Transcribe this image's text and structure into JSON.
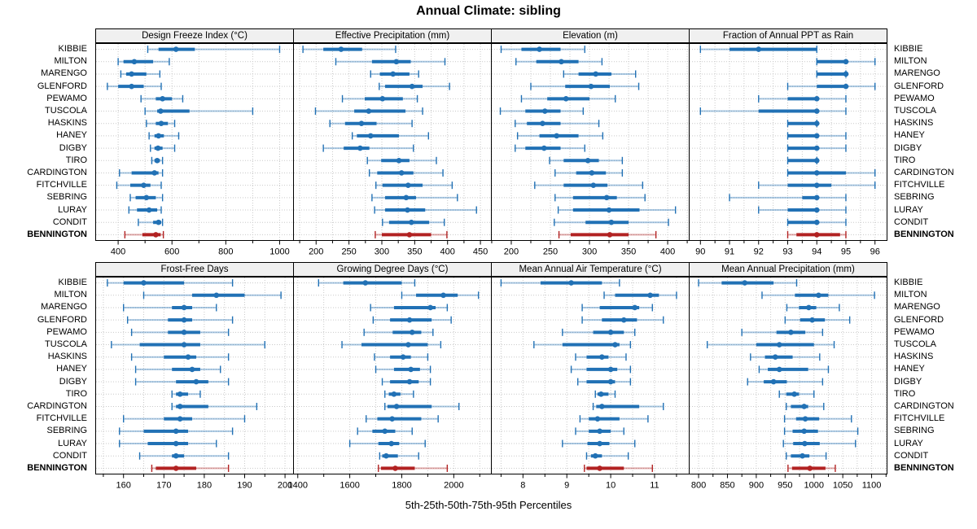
{
  "title": "Annual Climate: sibling",
  "caption": "5th-25th-50th-75th-95th Percentiles",
  "colors": {
    "series": "#2171b5",
    "highlight": "#b22222",
    "strip_bg": "#f0f0f0",
    "grid": "#c9c9c9",
    "border": "#000000"
  },
  "chart_data": {
    "type": "scatter",
    "subtype": "percentile-interval-dotplot",
    "percentiles": [
      5,
      25,
      50,
      75,
      95
    ],
    "grid": true,
    "legend_position": "none",
    "highlight_category": "BENNINGTON",
    "categories": [
      "KIBBIE",
      "MILTON",
      "MARENGO",
      "GLENFORD",
      "PEWAMO",
      "TUSCOLA",
      "HASKINS",
      "HANEY",
      "DIGBY",
      "TIRO",
      "CARDINGTON",
      "FITCHVILLE",
      "SEBRING",
      "LURAY",
      "CONDIT",
      "BENNINGTON"
    ],
    "panels": [
      {
        "title": "Design Freeze Index (°C)",
        "xlim": [
          315,
          1050
        ],
        "ticks": [
          400,
          600,
          800,
          1000
        ],
        "grid_step": 100,
        "values": [
          [
            510,
            550,
            615,
            685,
            1000
          ],
          [
            400,
            420,
            460,
            530,
            590
          ],
          [
            410,
            430,
            450,
            505,
            555
          ],
          [
            360,
            400,
            450,
            495,
            560
          ],
          [
            485,
            540,
            565,
            600,
            640
          ],
          [
            500,
            545,
            558,
            665,
            900
          ],
          [
            505,
            540,
            560,
            585,
            610
          ],
          [
            515,
            535,
            550,
            570,
            625
          ],
          [
            520,
            535,
            548,
            565,
            610
          ],
          [
            525,
            535,
            545,
            555,
            565
          ],
          [
            405,
            450,
            535,
            550,
            565
          ],
          [
            395,
            445,
            495,
            520,
            560
          ],
          [
            445,
            465,
            505,
            540,
            565
          ],
          [
            440,
            470,
            515,
            545,
            560
          ],
          [
            475,
            530,
            550,
            560,
            565
          ],
          [
            425,
            490,
            540,
            558,
            568
          ]
        ]
      },
      {
        "title": "Effective Precipitation (mm)",
        "xlim": [
          165,
          466
        ],
        "ticks": [
          200,
          250,
          300,
          350,
          400,
          450
        ],
        "grid_step": 25,
        "values": [
          [
            180,
            211,
            238,
            270,
            321
          ],
          [
            230,
            285,
            322,
            344,
            396
          ],
          [
            283,
            297,
            317,
            342,
            356
          ],
          [
            296,
            305,
            346,
            362,
            403
          ],
          [
            240,
            274,
            301,
            332,
            354
          ],
          [
            199,
            258,
            280,
            336,
            362
          ],
          [
            221,
            244,
            269,
            292,
            346
          ],
          [
            255,
            262,
            283,
            326,
            371
          ],
          [
            211,
            242,
            267,
            281,
            348
          ],
          [
            278,
            299,
            326,
            342,
            383
          ],
          [
            281,
            293,
            330,
            348,
            393
          ],
          [
            291,
            301,
            340,
            362,
            407
          ],
          [
            285,
            305,
            337,
            352,
            415
          ],
          [
            289,
            305,
            339,
            366,
            444
          ],
          [
            301,
            311,
            345,
            372,
            395
          ],
          [
            290,
            300,
            342,
            375,
            399
          ]
        ]
      },
      {
        "title": "Elevation (m)",
        "xlim": [
          174,
          427
        ],
        "ticks": [
          200,
          250,
          300,
          350,
          400
        ],
        "grid_step": 25,
        "values": [
          [
            187,
            213,
            236,
            263,
            294
          ],
          [
            206,
            232,
            264,
            286,
            316
          ],
          [
            267,
            286,
            308,
            328,
            359
          ],
          [
            225,
            269,
            302,
            326,
            363
          ],
          [
            213,
            246,
            270,
            300,
            333
          ],
          [
            186,
            218,
            243,
            263,
            292
          ],
          [
            205,
            220,
            240,
            263,
            312
          ],
          [
            208,
            236,
            258,
            286,
            317
          ],
          [
            205,
            218,
            242,
            263,
            294
          ],
          [
            249,
            267,
            298,
            312,
            342
          ],
          [
            256,
            283,
            303,
            321,
            342
          ],
          [
            230,
            267,
            305,
            323,
            368
          ],
          [
            256,
            279,
            322,
            335,
            371
          ],
          [
            260,
            279,
            325,
            364,
            410
          ],
          [
            255,
            295,
            328,
            350,
            401
          ],
          [
            261,
            276,
            326,
            350,
            385
          ]
        ]
      },
      {
        "title": "Fraction of Annual PPT as Rain",
        "xlim": [
          89.6,
          96.4
        ],
        "ticks": [
          90,
          91,
          92,
          93,
          94,
          95,
          96
        ],
        "grid_step": 0.5,
        "values": [
          [
            90,
            91,
            92,
            94,
            94
          ],
          [
            94,
            94,
            95,
            95,
            96
          ],
          [
            94,
            94,
            95,
            95,
            95
          ],
          [
            93,
            94,
            95,
            95,
            96
          ],
          [
            92,
            93,
            94,
            94,
            95
          ],
          [
            90,
            92,
            94,
            94,
            95
          ],
          [
            93,
            93,
            94,
            94,
            94
          ],
          [
            93,
            93,
            94,
            94,
            95
          ],
          [
            93,
            93,
            94,
            94,
            95
          ],
          [
            93,
            93,
            94,
            94,
            94
          ],
          [
            93,
            93,
            94,
            95,
            96
          ],
          [
            92,
            93,
            94,
            94.5,
            96
          ],
          [
            91,
            93.5,
            94,
            94,
            95
          ],
          [
            92,
            93,
            94,
            94,
            95
          ],
          [
            93,
            93,
            94,
            94,
            95
          ],
          [
            93,
            93.3,
            94,
            94.8,
            95
          ]
        ]
      },
      {
        "title": "Frost-Free Days",
        "xlim": [
          153,
          202
        ],
        "ticks": [
          160,
          170,
          180,
          190,
          200
        ],
        "grid_step": 5,
        "values": [
          [
            156,
            160,
            165,
            175,
            187
          ],
          [
            165,
            177,
            183,
            190,
            199
          ],
          [
            160,
            172,
            175,
            177,
            183
          ],
          [
            161,
            171,
            175,
            177,
            187
          ],
          [
            162,
            171,
            175,
            179,
            186
          ],
          [
            157,
            164,
            175,
            179,
            195
          ],
          [
            162,
            170,
            176,
            178,
            186
          ],
          [
            163,
            172,
            177,
            179,
            184
          ],
          [
            163,
            173,
            178,
            181,
            186
          ],
          [
            172,
            173,
            174,
            176,
            179
          ],
          [
            172,
            173,
            174,
            181,
            193
          ],
          [
            160,
            170,
            174,
            177,
            190
          ],
          [
            159,
            165,
            173,
            176,
            187
          ],
          [
            159,
            166,
            173,
            176,
            183
          ],
          [
            164,
            172,
            173,
            175,
            186
          ],
          [
            167,
            168,
            173,
            178,
            186
          ]
        ]
      },
      {
        "title": "Growing Degree Days (°C)",
        "xlim": [
          1382,
          2143
        ],
        "ticks": [
          1400,
          1600,
          1800,
          2000
        ],
        "grid_step": 100,
        "values": [
          [
            1480,
            1575,
            1660,
            1800,
            1850
          ],
          [
            1800,
            1855,
            1960,
            2015,
            2095
          ],
          [
            1680,
            1770,
            1910,
            1930,
            1975
          ],
          [
            1690,
            1755,
            1830,
            1915,
            1990
          ],
          [
            1655,
            1765,
            1840,
            1875,
            1920
          ],
          [
            1570,
            1645,
            1825,
            1900,
            1950
          ],
          [
            1695,
            1755,
            1805,
            1835,
            1900
          ],
          [
            1700,
            1770,
            1835,
            1870,
            1910
          ],
          [
            1725,
            1755,
            1830,
            1865,
            1910
          ],
          [
            1735,
            1750,
            1770,
            1795,
            1845
          ],
          [
            1735,
            1745,
            1780,
            1915,
            2020
          ],
          [
            1663,
            1706,
            1763,
            1875,
            1940
          ],
          [
            1630,
            1687,
            1735,
            1775,
            1840
          ],
          [
            1600,
            1710,
            1760,
            1790,
            1890
          ],
          [
            1715,
            1725,
            1740,
            1785,
            1865
          ],
          [
            1710,
            1720,
            1775,
            1850,
            1975
          ]
        ]
      },
      {
        "title": "Mean Annual Air Temperature (°C)",
        "xlim": [
          7.27,
          11.78
        ],
        "ticks": [
          8,
          9,
          10,
          11
        ],
        "grid_step": 0.5,
        "values": [
          [
            7.5,
            8.4,
            9.1,
            9.8,
            10.2
          ],
          [
            9.85,
            10.1,
            10.9,
            11.1,
            11.5
          ],
          [
            9.35,
            9.75,
            10.55,
            10.65,
            10.95
          ],
          [
            9.35,
            9.8,
            10.3,
            10.6,
            11.2
          ],
          [
            8.9,
            9.6,
            10.0,
            10.3,
            10.55
          ],
          [
            8.25,
            8.9,
            10.1,
            10.2,
            10.45
          ],
          [
            9.2,
            9.45,
            9.8,
            9.95,
            10.35
          ],
          [
            9.1,
            9.45,
            10.0,
            10.15,
            10.45
          ],
          [
            9.25,
            9.45,
            10.0,
            10.1,
            10.45
          ],
          [
            9.65,
            9.7,
            9.78,
            9.95,
            10.1
          ],
          [
            9.6,
            9.67,
            9.8,
            10.65,
            11.2
          ],
          [
            9.3,
            9.5,
            9.7,
            10.2,
            10.85
          ],
          [
            9.2,
            9.5,
            9.75,
            10.0,
            10.3
          ],
          [
            8.9,
            9.47,
            9.75,
            9.97,
            10.55
          ],
          [
            9.45,
            9.55,
            9.65,
            9.8,
            10.4
          ],
          [
            9.4,
            9.45,
            9.75,
            10.3,
            10.95
          ]
        ]
      },
      {
        "title": "Mean Annual Precipitation (mm)",
        "xlim": [
          783,
          1126
        ],
        "ticks": [
          800,
          850,
          900,
          950,
          1000,
          1050,
          1100
        ],
        "grid_step": 25,
        "values": [
          [
            800,
            840,
            880,
            930,
            970
          ],
          [
            910,
            967,
            1008,
            1025,
            1105
          ],
          [
            953,
            974,
            991,
            1004,
            1044
          ],
          [
            950,
            976,
            997,
            1019,
            1062
          ],
          [
            875,
            935,
            960,
            985,
            1015
          ],
          [
            815,
            900,
            940,
            1000,
            1035
          ],
          [
            890,
            915,
            933,
            963,
            1010
          ],
          [
            905,
            920,
            940,
            990,
            1025
          ],
          [
            885,
            913,
            930,
            953,
            1015
          ],
          [
            940,
            952,
            966,
            974,
            1000
          ],
          [
            952,
            960,
            983,
            990,
            1017
          ],
          [
            949,
            969,
            985,
            1009,
            1065
          ],
          [
            949,
            963,
            983,
            1007,
            1076
          ],
          [
            947,
            964,
            984,
            1010,
            1072
          ],
          [
            952,
            960,
            980,
            992,
            1021
          ],
          [
            955,
            962,
            993,
            1020,
            1037
          ]
        ]
      }
    ]
  }
}
